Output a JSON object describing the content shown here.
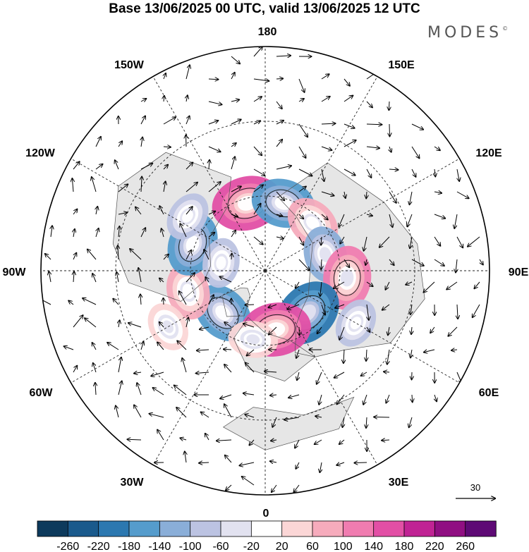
{
  "title": "Base 13/06/2025 00 UTC, valid 13/06/2025 12 UTC",
  "brand": "MODES",
  "brand_mark": "©",
  "lon_labels": {
    "n180": "180",
    "w150": "150W",
    "e150": "150E",
    "w120": "120W",
    "e120": "120E",
    "w90": "90W",
    "e90": "90E",
    "w60": "60W",
    "e60": "60E",
    "w30": "30W",
    "e30": "30E",
    "s0": "0"
  },
  "reference_vector": "30",
  "colorbar": {
    "colors": [
      "#0d3a5c",
      "#1a5a8c",
      "#2c78b0",
      "#559ccc",
      "#8aaed8",
      "#bcc3e2",
      "#e2e2f0",
      "#ffffff",
      "#fbd6d6",
      "#f6abbc",
      "#f07cb0",
      "#e24fa5",
      "#c02394",
      "#900f82",
      "#5e0a75"
    ],
    "labels": [
      "-260",
      "-220",
      "-180",
      "-140",
      "-100",
      "-60",
      "-20",
      "20",
      "60",
      "100",
      "140",
      "180",
      "220",
      "260"
    ]
  },
  "map": {
    "land_color": "#e6e6e6",
    "anomalies": [
      {
        "lon": -45,
        "colat": 24,
        "value": -140
      },
      {
        "lon": -75,
        "colat": 32,
        "value": 100
      },
      {
        "lon": -110,
        "colat": 31,
        "value": -140
      },
      {
        "lon": -125,
        "colat": 38,
        "value": -60
      },
      {
        "lon": -165,
        "colat": 28,
        "value": 180
      },
      {
        "lon": 165,
        "colat": 28,
        "value": -140
      },
      {
        "lon": 135,
        "colat": 27,
        "value": 100
      },
      {
        "lon": 105,
        "colat": 25,
        "value": -100
      },
      {
        "lon": 85,
        "colat": 33,
        "value": 140
      },
      {
        "lon": 45,
        "colat": 24,
        "value": -180
      },
      {
        "lon": 10,
        "colat": 24,
        "value": 180
      },
      {
        "lon": -10,
        "colat": 28,
        "value": 60
      },
      {
        "lon": -100,
        "colat": 18,
        "value": -60
      },
      {
        "lon": 60,
        "colat": 42,
        "value": -60
      },
      {
        "lon": -60,
        "colat": 45,
        "value": 60
      }
    ]
  }
}
